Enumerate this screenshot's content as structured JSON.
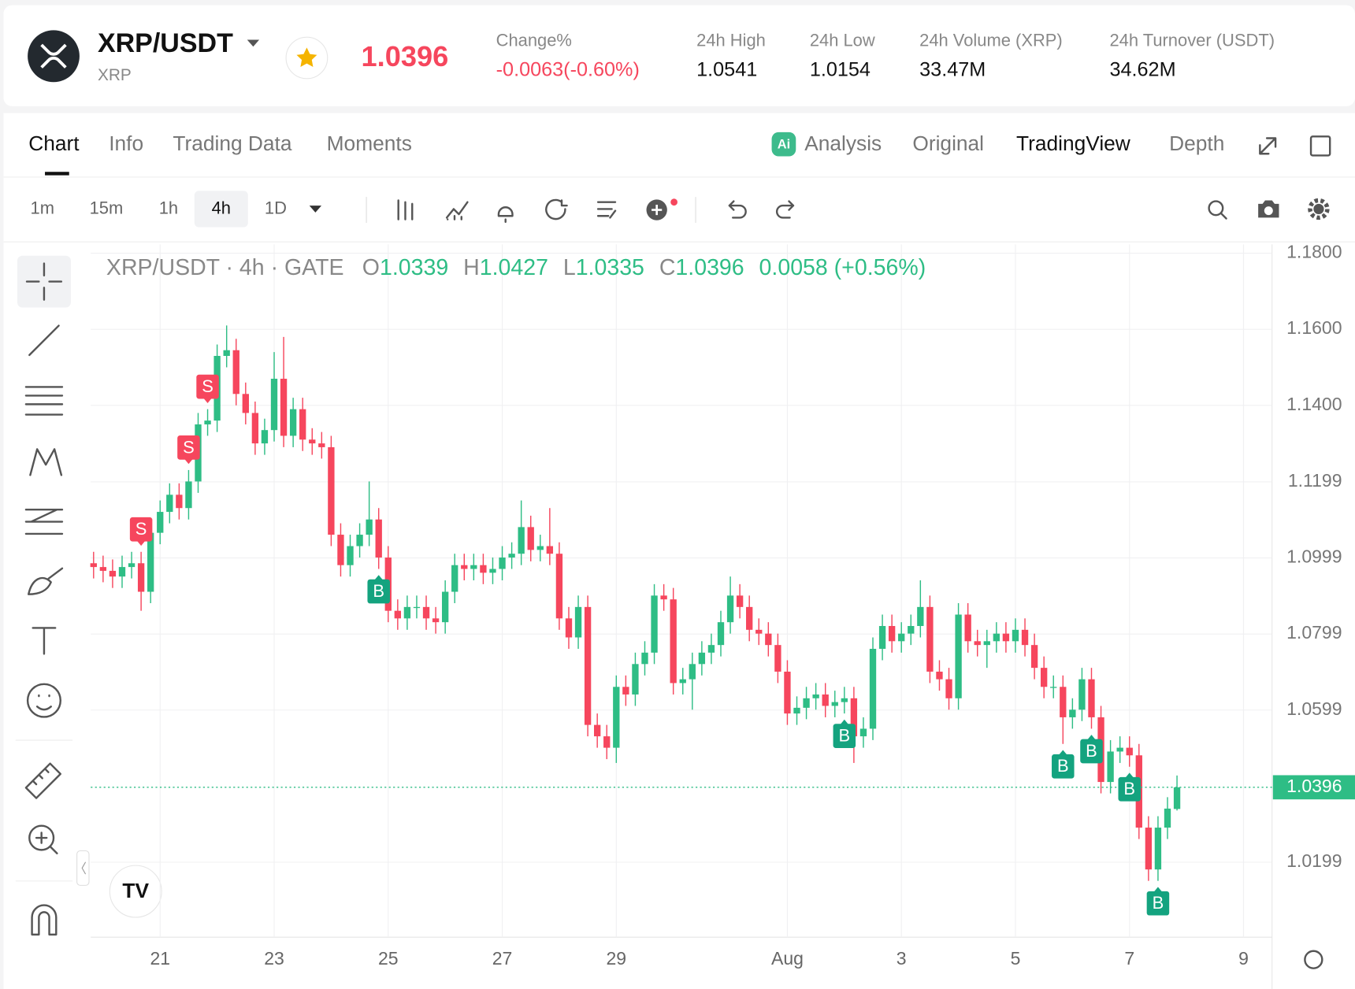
{
  "header": {
    "pair": "XRP/USDT",
    "base": "XRP",
    "price": "1.0396",
    "stats": [
      {
        "label": "Change%",
        "value": "-0.0063(-0.60%)"
      },
      {
        "label": "24h High",
        "value": "1.0541"
      },
      {
        "label": "24h Low",
        "value": "1.0154"
      },
      {
        "label": "24h Volume (XRP)",
        "value": "33.47M"
      },
      {
        "label": "24h Turnover (USDT)",
        "value": "34.62M"
      }
    ]
  },
  "tabs": [
    "Chart",
    "Info",
    "Trading Data",
    "Moments"
  ],
  "views": [
    "Analysis",
    "Original",
    "TradingView",
    "Depth"
  ],
  "intervals": [
    "1m",
    "15m",
    "1h",
    "4h",
    "1D"
  ],
  "chart_data": {
    "type": "candlestick",
    "title": "XRP/USDT · 4h · GATE",
    "ohlc_labels": [
      "O",
      "H",
      "L",
      "C"
    ],
    "change_label": "0.0058 (+0.56%)",
    "up_color": "#2ebd85",
    "down_color": "#f6465d",
    "grid": true,
    "xlim": [
      -0.3,
      124
    ],
    "xticks": [
      {
        "value": 7,
        "label": "21"
      },
      {
        "value": 19,
        "label": "23"
      },
      {
        "value": 31,
        "label": "25"
      },
      {
        "value": 43,
        "label": "27"
      },
      {
        "value": 55,
        "label": "29"
      },
      {
        "value": 73,
        "label": "Aug"
      },
      {
        "value": 85,
        "label": "3"
      },
      {
        "value": 97,
        "label": "5"
      },
      {
        "value": 109,
        "label": "7"
      },
      {
        "value": 121,
        "label": "9"
      }
    ],
    "ylim": [
      1.0002,
      1.1823
    ],
    "yticks": [
      {
        "value": 1.18,
        "label": "1.1800"
      },
      {
        "value": 1.16,
        "label": "1.1600"
      },
      {
        "value": 1.14,
        "label": "1.1400"
      },
      1.1199,
      1.0999,
      1.0799,
      1.0599,
      1.0199
    ],
    "open": [
      1.0985,
      1.0975,
      1.0965,
      1.095,
      1.0975,
      1.0985,
      1.091,
      1.1065,
      1.112,
      1.1165,
      1.113,
      1.12,
      1.135,
      1.136,
      1.153,
      1.1545,
      1.143,
      1.138,
      1.13,
      1.1335,
      1.147,
      1.132,
      1.139,
      1.131,
      1.13,
      1.129,
      1.106,
      1.098,
      1.103,
      1.106,
      1.11,
      1.1,
      1.086,
      1.084,
      1.087,
      1.087,
      1.084,
      1.083,
      1.091,
      1.098,
      1.097,
      1.098,
      1.096,
      1.097,
      1.1,
      1.101,
      1.108,
      1.102,
      1.103,
      1.101,
      1.084,
      1.079,
      1.087,
      1.056,
      1.053,
      1.05,
      1.066,
      1.064,
      1.072,
      1.075,
      1.09,
      1.089,
      1.067,
      1.068,
      1.072,
      1.075,
      1.077,
      1.083,
      1.09,
      1.087,
      1.081,
      1.08,
      1.077,
      1.07,
      1.059,
      1.0605,
      1.063,
      1.064,
      1.061,
      1.062,
      1.063,
      1.053,
      1.055,
      1.076,
      1.082,
      1.078,
      1.08,
      1.082,
      1.087,
      1.07,
      1.068,
      1.063,
      1.085,
      1.078,
      1.077,
      1.078,
      1.08,
      1.078,
      1.081,
      1.077,
      1.071,
      1.066,
      1.066,
      1.058,
      1.06,
      1.068,
      1.058,
      1.041,
      1.049,
      1.05,
      1.048,
      1.029,
      1.018,
      1.029,
      1.0339
    ],
    "high": [
      1.1015,
      1.1005,
      1.0995,
      1.1005,
      1.1015,
      1.1015,
      1.1095,
      1.115,
      1.1195,
      1.1195,
      1.123,
      1.138,
      1.139,
      1.156,
      1.161,
      1.1575,
      1.146,
      1.141,
      1.1365,
      1.154,
      1.158,
      1.142,
      1.142,
      1.134,
      1.133,
      1.132,
      1.109,
      1.106,
      1.109,
      1.12,
      1.113,
      1.103,
      1.089,
      1.09,
      1.09,
      1.09,
      1.087,
      1.094,
      1.101,
      1.101,
      1.101,
      1.101,
      1.1,
      1.103,
      1.104,
      1.115,
      1.111,
      1.106,
      1.113,
      1.104,
      1.087,
      1.09,
      1.09,
      1.059,
      1.056,
      1.069,
      1.069,
      1.075,
      1.078,
      1.093,
      1.093,
      1.092,
      1.071,
      1.075,
      1.078,
      1.08,
      1.086,
      1.095,
      1.093,
      1.09,
      1.084,
      1.083,
      1.08,
      1.073,
      1.0635,
      1.066,
      1.067,
      1.067,
      1.065,
      1.066,
      1.066,
      1.058,
      1.079,
      1.085,
      1.085,
      1.083,
      1.085,
      1.094,
      1.09,
      1.073,
      1.071,
      1.088,
      1.088,
      1.081,
      1.081,
      1.083,
      1.083,
      1.084,
      1.084,
      1.08,
      1.074,
      1.069,
      1.069,
      1.063,
      1.071,
      1.071,
      1.061,
      1.052,
      1.053,
      1.053,
      1.051,
      1.032,
      1.032,
      1.037,
      1.0427
    ],
    "low": [
      1.0945,
      1.0935,
      1.092,
      1.092,
      1.0945,
      1.086,
      1.088,
      1.1035,
      1.109,
      1.11,
      1.11,
      1.117,
      1.132,
      1.133,
      1.15,
      1.14,
      1.135,
      1.127,
      1.127,
      1.1305,
      1.129,
      1.129,
      1.128,
      1.127,
      1.126,
      1.103,
      1.095,
      1.095,
      1.1,
      1.103,
      1.097,
      1.083,
      1.081,
      1.081,
      1.084,
      1.081,
      1.08,
      1.08,
      1.088,
      1.094,
      1.094,
      1.093,
      1.093,
      1.094,
      1.097,
      1.098,
      1.099,
      1.099,
      1.098,
      1.081,
      1.076,
      1.076,
      1.053,
      1.05,
      1.047,
      1.046,
      1.061,
      1.061,
      1.069,
      1.072,
      1.086,
      1.064,
      1.064,
      1.06,
      1.069,
      1.072,
      1.074,
      1.08,
      1.084,
      1.078,
      1.077,
      1.074,
      1.067,
      1.056,
      1.056,
      1.0575,
      1.06,
      1.058,
      1.058,
      1.059,
      1.046,
      1.05,
      1.052,
      1.073,
      1.075,
      1.075,
      1.077,
      1.079,
      1.067,
      1.065,
      1.06,
      1.06,
      1.075,
      1.074,
      1.071,
      1.075,
      1.075,
      1.075,
      1.074,
      1.068,
      1.063,
      1.063,
      1.051,
      1.055,
      1.057,
      1.055,
      1.038,
      1.038,
      1.046,
      1.045,
      1.026,
      1.015,
      1.015,
      1.026,
      1.0335
    ],
    "close": [
      1.0975,
      1.0965,
      1.095,
      1.0975,
      1.0985,
      1.091,
      1.1065,
      1.112,
      1.1165,
      1.113,
      1.12,
      1.135,
      1.136,
      1.153,
      1.1545,
      1.143,
      1.138,
      1.13,
      1.1335,
      1.147,
      1.132,
      1.139,
      1.131,
      1.13,
      1.129,
      1.106,
      1.098,
      1.103,
      1.106,
      1.11,
      1.1,
      1.086,
      1.084,
      1.087,
      1.087,
      1.084,
      1.083,
      1.091,
      1.098,
      1.097,
      1.098,
      1.096,
      1.097,
      1.1,
      1.101,
      1.108,
      1.102,
      1.103,
      1.101,
      1.084,
      1.079,
      1.087,
      1.056,
      1.053,
      1.05,
      1.066,
      1.064,
      1.072,
      1.075,
      1.09,
      1.089,
      1.067,
      1.068,
      1.072,
      1.075,
      1.077,
      1.083,
      1.09,
      1.087,
      1.081,
      1.08,
      1.077,
      1.07,
      1.059,
      1.0605,
      1.063,
      1.064,
      1.061,
      1.062,
      1.063,
      1.053,
      1.055,
      1.076,
      1.082,
      1.078,
      1.08,
      1.082,
      1.087,
      1.07,
      1.068,
      1.063,
      1.085,
      1.078,
      1.077,
      1.078,
      1.08,
      1.078,
      1.081,
      1.077,
      1.071,
      1.066,
      1.066,
      1.058,
      1.06,
      1.068,
      1.058,
      1.041,
      1.049,
      1.05,
      1.048,
      1.029,
      1.018,
      1.029,
      1.034,
      1.0396
    ],
    "signals": [
      {
        "x": 5,
        "label": "S",
        "color": "#f6465d"
      },
      {
        "x": 10,
        "label": "S",
        "color": "#f6465d"
      },
      {
        "x": 12,
        "label": "S",
        "color": "#f6465d"
      },
      {
        "x": 30,
        "label": "B",
        "color": "#14a37f"
      },
      {
        "x": 79,
        "label": "B",
        "color": "#14a37f"
      },
      {
        "x": 102,
        "label": "B",
        "color": "#14a37f"
      },
      {
        "x": 105,
        "label": "B",
        "color": "#14a37f"
      },
      {
        "x": 109,
        "label": "B",
        "color": "#14a37f"
      },
      {
        "x": 112,
        "label": "B",
        "color": "#14a37f"
      }
    ]
  }
}
